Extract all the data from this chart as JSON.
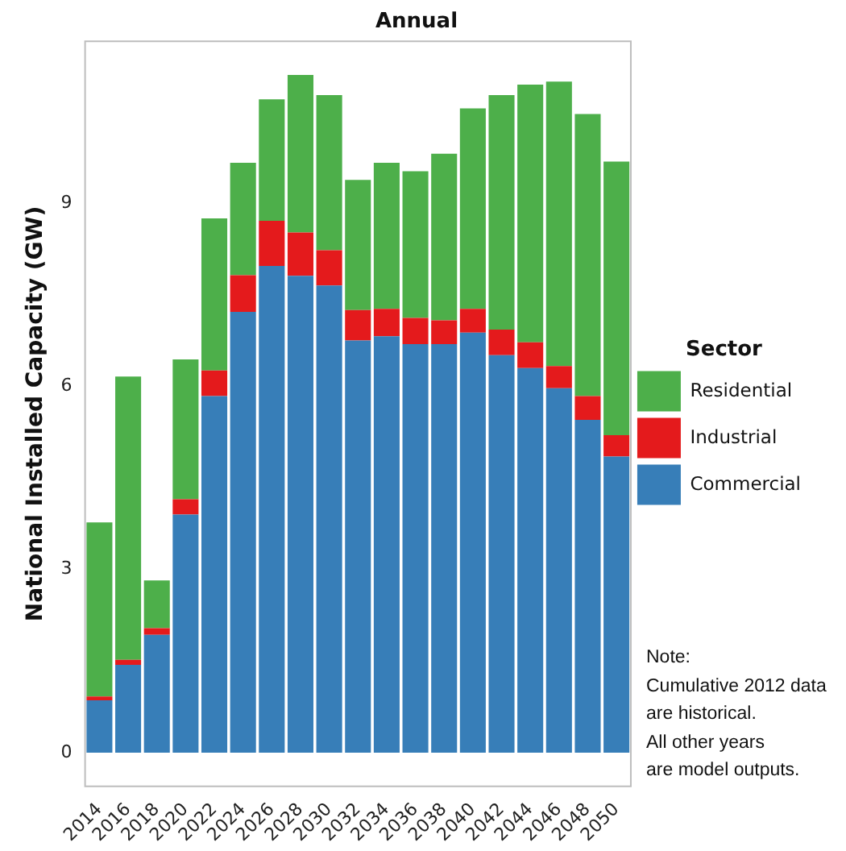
{
  "chart_data": {
    "type": "bar",
    "title": "Annual",
    "ylabel": "National Installed Capacity (GW)",
    "legend_title": "Sector",
    "stacked": true,
    "legend": "right",
    "grid": false,
    "categories": [
      "2014",
      "2016",
      "2018",
      "2020",
      "2022",
      "2024",
      "2026",
      "2028",
      "2030",
      "2032",
      "2034",
      "2036",
      "2038",
      "2040",
      "2042",
      "2044",
      "2046",
      "2048",
      "2050"
    ],
    "series": [
      {
        "name": "Commercial",
        "color": "#377eb8",
        "values": [
          0.86,
          1.44,
          1.93,
          3.9,
          5.84,
          7.22,
          7.97,
          7.81,
          7.65,
          6.75,
          6.82,
          6.69,
          6.69,
          6.88,
          6.51,
          6.3,
          5.97,
          5.45,
          4.85
        ]
      },
      {
        "name": "Industrial",
        "color": "#e41a1c",
        "values": [
          0.06,
          0.08,
          0.11,
          0.25,
          0.42,
          0.6,
          0.74,
          0.71,
          0.58,
          0.5,
          0.45,
          0.43,
          0.39,
          0.39,
          0.42,
          0.42,
          0.36,
          0.39,
          0.35
        ]
      },
      {
        "name": "Residential",
        "color": "#4daf4a",
        "values": [
          2.85,
          4.64,
          0.78,
          2.29,
          2.49,
          1.84,
          1.99,
          2.58,
          2.54,
          2.13,
          2.39,
          2.4,
          2.73,
          3.28,
          3.84,
          4.22,
          4.66,
          4.62,
          4.48
        ]
      }
    ],
    "ylim": [
      -0.55,
      11.65
    ],
    "yticks": [
      0,
      3,
      6,
      9
    ],
    "annotations": [
      "Note:\nCumulative 2012 data\nare historical.\nAll other years\nare model outputs."
    ]
  }
}
